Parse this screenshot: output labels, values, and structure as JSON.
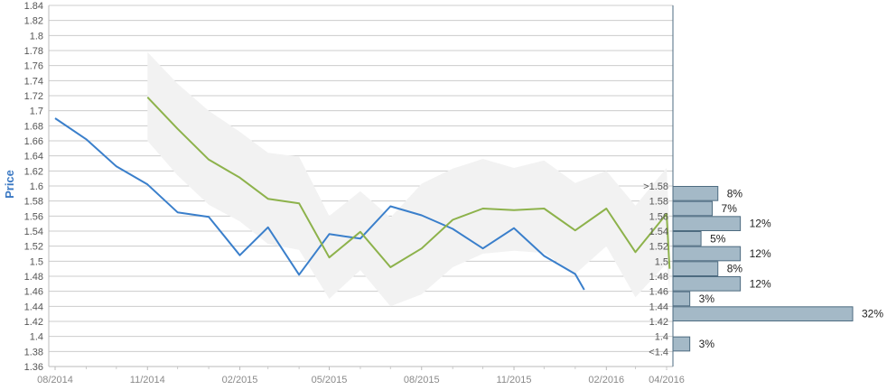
{
  "chart_data": {
    "type": "line",
    "ylabel": "Price",
    "ylim": [
      1.36,
      1.84
    ],
    "yticks": [
      "1.36",
      "1.38",
      "1.4",
      "1.42",
      "1.44",
      "1.46",
      "1.48",
      "1.5",
      "1.52",
      "1.54",
      "1.56",
      "1.58",
      "1.6",
      "1.62",
      "1.64",
      "1.66",
      "1.68",
      "1.7",
      "1.72",
      "1.74",
      "1.76",
      "1.78",
      "1.8",
      "1.82",
      "1.84"
    ],
    "xlim": [
      "2014-08-01",
      "2016-04-01"
    ],
    "xticks": [
      {
        "label": "08/2014",
        "date": "2014-08-01"
      },
      {
        "label": "11/2014",
        "date": "2014-11-01"
      },
      {
        "label": "02/2015",
        "date": "2015-02-01"
      },
      {
        "label": "05/2015",
        "date": "2015-05-01"
      },
      {
        "label": "08/2015",
        "date": "2015-08-01"
      },
      {
        "label": "11/2015",
        "date": "2015-11-01"
      },
      {
        "label": "02/2016",
        "date": "2016-02-01"
      },
      {
        "label": "04/2016",
        "date": "2016-04-01"
      }
    ],
    "grid": true,
    "colors": {
      "actual": "#3a7fcb",
      "forecast": "#8db24b",
      "band": "#f2f2f2",
      "dist_bar": "#a4b9c7",
      "dist_border": "#4d6b80",
      "grid": "#cccccc",
      "axis": "#4d6b80",
      "ylabel": "#3a78c3"
    },
    "series": [
      {
        "x": [
          "2014-08-01",
          "2014-09-01",
          "2014-10-01",
          "2014-11-01",
          "2014-12-01",
          "2015-01-01",
          "2015-02-01",
          "2015-03-01",
          "2015-04-01",
          "2015-05-01",
          "2015-06-01",
          "2015-07-01",
          "2015-08-01",
          "2015-09-01",
          "2015-10-01",
          "2015-11-01",
          "2015-12-01",
          "2016-01-01",
          "2016-01-10"
        ],
        "values": [
          1.69,
          1.662,
          1.626,
          1.602,
          1.565,
          1.559,
          1.508,
          1.545,
          1.482,
          1.536,
          1.53,
          1.573,
          1.561,
          1.543,
          1.517,
          1.544,
          1.507,
          1.483,
          1.462
        ]
      },
      {
        "x": [
          "2014-11-01",
          "2014-12-01",
          "2015-01-01",
          "2015-02-01",
          "2015-03-01",
          "2015-04-01",
          "2015-05-01",
          "2015-06-01",
          "2015-07-01",
          "2015-08-01",
          "2015-09-01",
          "2015-10-01",
          "2015-11-01",
          "2015-12-01",
          "2016-01-01",
          "2016-02-01",
          "2016-03-01",
          "2016-04-01",
          "2016-04-04"
        ],
        "values": [
          1.718,
          1.676,
          1.635,
          1.611,
          1.583,
          1.577,
          1.505,
          1.539,
          1.492,
          1.517,
          1.555,
          1.57,
          1.568,
          1.57,
          1.541,
          1.57,
          1.512,
          1.563,
          1.49
        ]
      }
    ],
    "band": {
      "x": [
        "2014-11-01",
        "2014-12-01",
        "2015-01-01",
        "2015-02-01",
        "2015-03-01",
        "2015-04-01",
        "2015-05-01",
        "2015-06-01",
        "2015-07-01",
        "2015-08-01",
        "2015-09-01",
        "2015-10-01",
        "2015-11-01",
        "2015-12-01",
        "2016-01-01",
        "2016-02-01",
        "2016-03-01",
        "2016-04-01",
        "2016-04-04"
      ],
      "upper": [
        1.778,
        1.736,
        1.7,
        1.672,
        1.644,
        1.639,
        1.56,
        1.593,
        1.558,
        1.603,
        1.623,
        1.636,
        1.624,
        1.634,
        1.604,
        1.62,
        1.574,
        1.624,
        1.54
      ],
      "lower": [
        1.66,
        1.614,
        1.575,
        1.553,
        1.523,
        1.515,
        1.45,
        1.488,
        1.44,
        1.456,
        1.492,
        1.51,
        1.514,
        1.511,
        1.483,
        1.52,
        1.452,
        1.497,
        1.46
      ]
    },
    "distribution": {
      "categories": [
        ">1.58",
        "1.58",
        "1.56",
        "1.54",
        "1.52",
        "1.5",
        "1.48",
        "1.46",
        "1.44",
        "1.42",
        "1.4",
        "<1.4"
      ],
      "bars": [
        {
          "value": 8,
          "label": "8%"
        },
        {
          "value": 7,
          "label": "7%"
        },
        {
          "value": 12,
          "label": "12%"
        },
        {
          "value": 5,
          "label": "5%"
        },
        {
          "value": 12,
          "label": "12%"
        },
        {
          "value": 8,
          "label": "8%"
        },
        {
          "value": 12,
          "label": "12%"
        },
        {
          "value": 3,
          "label": "3%"
        },
        {
          "value": 32,
          "label": "32%"
        },
        {
          "value": 3,
          "label": "3%"
        }
      ],
      "bar_ranges": [
        [
          1.58,
          1.6
        ],
        [
          1.56,
          1.58
        ],
        [
          1.54,
          1.56
        ],
        [
          1.52,
          1.54
        ],
        [
          1.5,
          1.52
        ],
        [
          1.48,
          1.5
        ],
        [
          1.46,
          1.48
        ],
        [
          1.44,
          1.46
        ],
        [
          1.42,
          1.44
        ],
        [
          1.38,
          1.4
        ]
      ]
    }
  }
}
